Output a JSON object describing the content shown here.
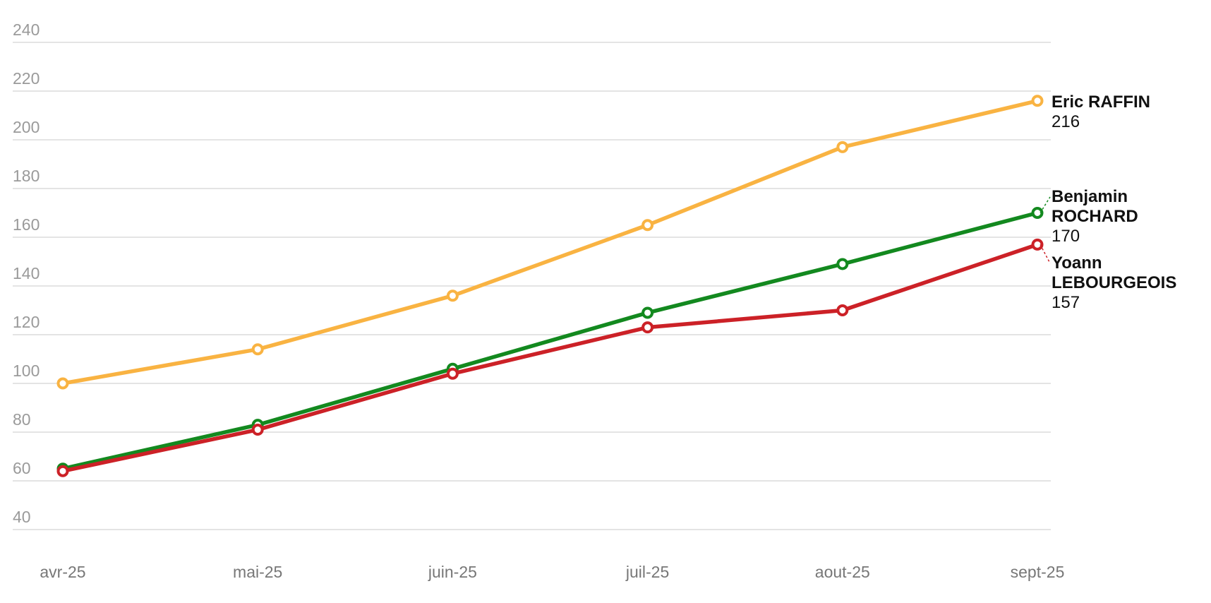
{
  "chart_data": {
    "type": "line",
    "categories": [
      "avr-25",
      "mai-25",
      "juin-25",
      "juil-25",
      "aout-25",
      "sept-25"
    ],
    "series": [
      {
        "name": "Eric RAFFIN",
        "color": "#f9b342",
        "values": [
          100,
          114,
          136,
          165,
          197,
          216
        ]
      },
      {
        "name": "Benjamin ROCHARD",
        "color": "#13891f",
        "values": [
          65,
          83,
          106,
          129,
          149,
          170
        ]
      },
      {
        "name": "Yoann LEBOURGEOIS",
        "color": "#cc2127",
        "values": [
          64,
          81,
          104,
          123,
          130,
          157
        ]
      }
    ],
    "ylim": [
      40,
      240
    ],
    "yticks": [
      40,
      60,
      80,
      100,
      120,
      140,
      160,
      180,
      200,
      220,
      240
    ],
    "grid": true
  }
}
